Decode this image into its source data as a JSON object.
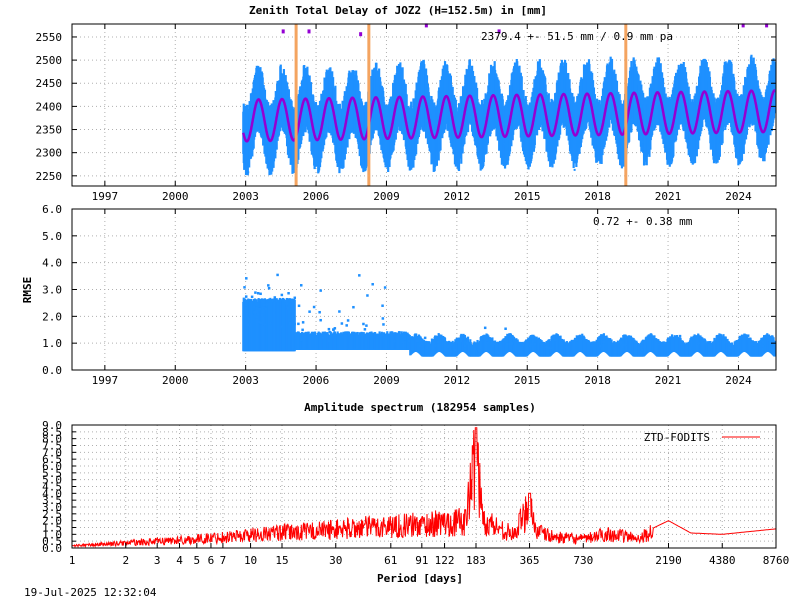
{
  "chart_data": [
    {
      "type": "scatter",
      "title": "Zenith Total Delay of JOZ2 (H=152.5m) in [mm]",
      "xlabel": "",
      "ylabel": "",
      "xlim": [
        1995.6,
        2025.6
      ],
      "ylim": [
        2228,
        2578
      ],
      "x_ticks": [
        1997,
        2000,
        2003,
        2006,
        2009,
        2012,
        2015,
        2018,
        2021,
        2024
      ],
      "x_tick_labels": [
        "1997",
        "2000",
        "2003",
        "2006",
        "2009",
        "2012",
        "2015",
        "2018",
        "2021",
        "2024"
      ],
      "y_ticks": [
        2250,
        2300,
        2350,
        2400,
        2450,
        2500,
        2550
      ],
      "y_tick_labels": [
        "2250",
        "2300",
        "2350",
        "2400",
        "2450",
        "2500",
        "2550"
      ],
      "annotation": "2379.4 +-  51.5 mm /  0.9 mm pa",
      "grid": true,
      "data_start": 2002.9,
      "data_end": 2025.55,
      "mean": 2379.4,
      "std": 51.5,
      "trend_per_year": 0.9,
      "seasonal_amplitude": 45,
      "series": [
        {
          "values_note": "",
          "color": "#1e90ff"
        },
        {
          "color": "#9400d3"
        }
      ],
      "vertical_lines": [
        2005.15,
        2008.25,
        2019.2
      ],
      "vertical_line_color": "#f4a460",
      "outliers_above": [
        [
          2004.6,
          2562
        ],
        [
          2005.7,
          2562
        ],
        [
          2007.9,
          2556
        ],
        [
          2010.7,
          2575
        ],
        [
          2013.8,
          2562
        ],
        [
          2024.2,
          2575
        ],
        [
          2025.2,
          2575
        ]
      ]
    },
    {
      "type": "scatter",
      "title": "",
      "xlabel": "",
      "ylabel": "RMSE",
      "xlim": [
        1995.6,
        2025.6
      ],
      "ylim": [
        0,
        6
      ],
      "x_ticks": [
        1997,
        2000,
        2003,
        2006,
        2009,
        2012,
        2015,
        2018,
        2021,
        2024
      ],
      "x_tick_labels": [
        "1997",
        "2000",
        "2003",
        "2006",
        "2009",
        "2012",
        "2015",
        "2018",
        "2021",
        "2024"
      ],
      "y_ticks": [
        0,
        1,
        2,
        3,
        4,
        5,
        6
      ],
      "y_tick_labels": [
        "0.0",
        "1.0",
        "2.0",
        "3.0",
        "4.0",
        "5.0",
        "6.0"
      ],
      "annotation": "0.72 +-  0.38 mm",
      "grid": true,
      "color": "#1e90ff",
      "mean": 0.72,
      "std": 0.38
    },
    {
      "type": "line",
      "title": "Amplitude spectrum (182954 samples)",
      "xlabel": "Period [days]",
      "ylabel": "",
      "x_scale": "log",
      "xlim": [
        1,
        8760
      ],
      "ylim": [
        0,
        9
      ],
      "x_ticks": [
        1,
        2,
        3,
        4,
        5,
        6,
        7,
        10,
        15,
        30,
        61,
        91,
        122,
        183,
        365,
        730,
        2190,
        4380,
        8760
      ],
      "x_tick_labels": [
        "1",
        "2",
        "3",
        "4",
        "5",
        "6",
        "7",
        "10",
        "15",
        "30",
        "61",
        "91",
        "122",
        "183",
        "365",
        "730",
        "2190",
        "4380",
        "8760"
      ],
      "y_ticks": [
        0,
        0.5,
        1,
        1.5,
        2,
        2.5,
        3,
        3.5,
        4,
        4.5,
        5,
        5.5,
        6,
        6.5,
        7,
        7.5,
        8,
        8.5,
        9
      ],
      "y_tick_labels": [
        "0.0",
        "0.5",
        "1.0",
        "1.5",
        "2.0",
        "2.5",
        "3.0",
        "3.5",
        "4.0",
        "4.5",
        "5.0",
        "5.5",
        "6.0",
        "6.5",
        "7.0",
        "7.5",
        "8.0",
        "8.5",
        "9.0"
      ],
      "grid": true,
      "legend": "top-right",
      "series": [
        {
          "name": "ZTD-FODITS",
          "color": "#ff0000",
          "x": [
            1,
            2,
            3,
            5,
            7,
            10,
            15,
            20,
            30,
            45,
            61,
            91,
            122,
            160,
            183,
            200,
            250,
            300,
            365,
            400,
            500,
            730,
            1000,
            1460,
            1825,
            2190,
            2920,
            4380,
            8760
          ],
          "y": [
            0.2,
            0.45,
            0.6,
            0.8,
            1.0,
            1.2,
            1.4,
            1.5,
            1.7,
            1.9,
            2.0,
            2.1,
            2.3,
            2.4,
            8.8,
            2.5,
            1.8,
            1.2,
            4.0,
            1.5,
            1.0,
            0.8,
            1.3,
            0.9,
            1.5,
            2.0,
            1.1,
            1.0,
            1.4
          ]
        }
      ]
    }
  ],
  "footer": {
    "timestamp": "19-Jul-2025 12:32:04"
  }
}
